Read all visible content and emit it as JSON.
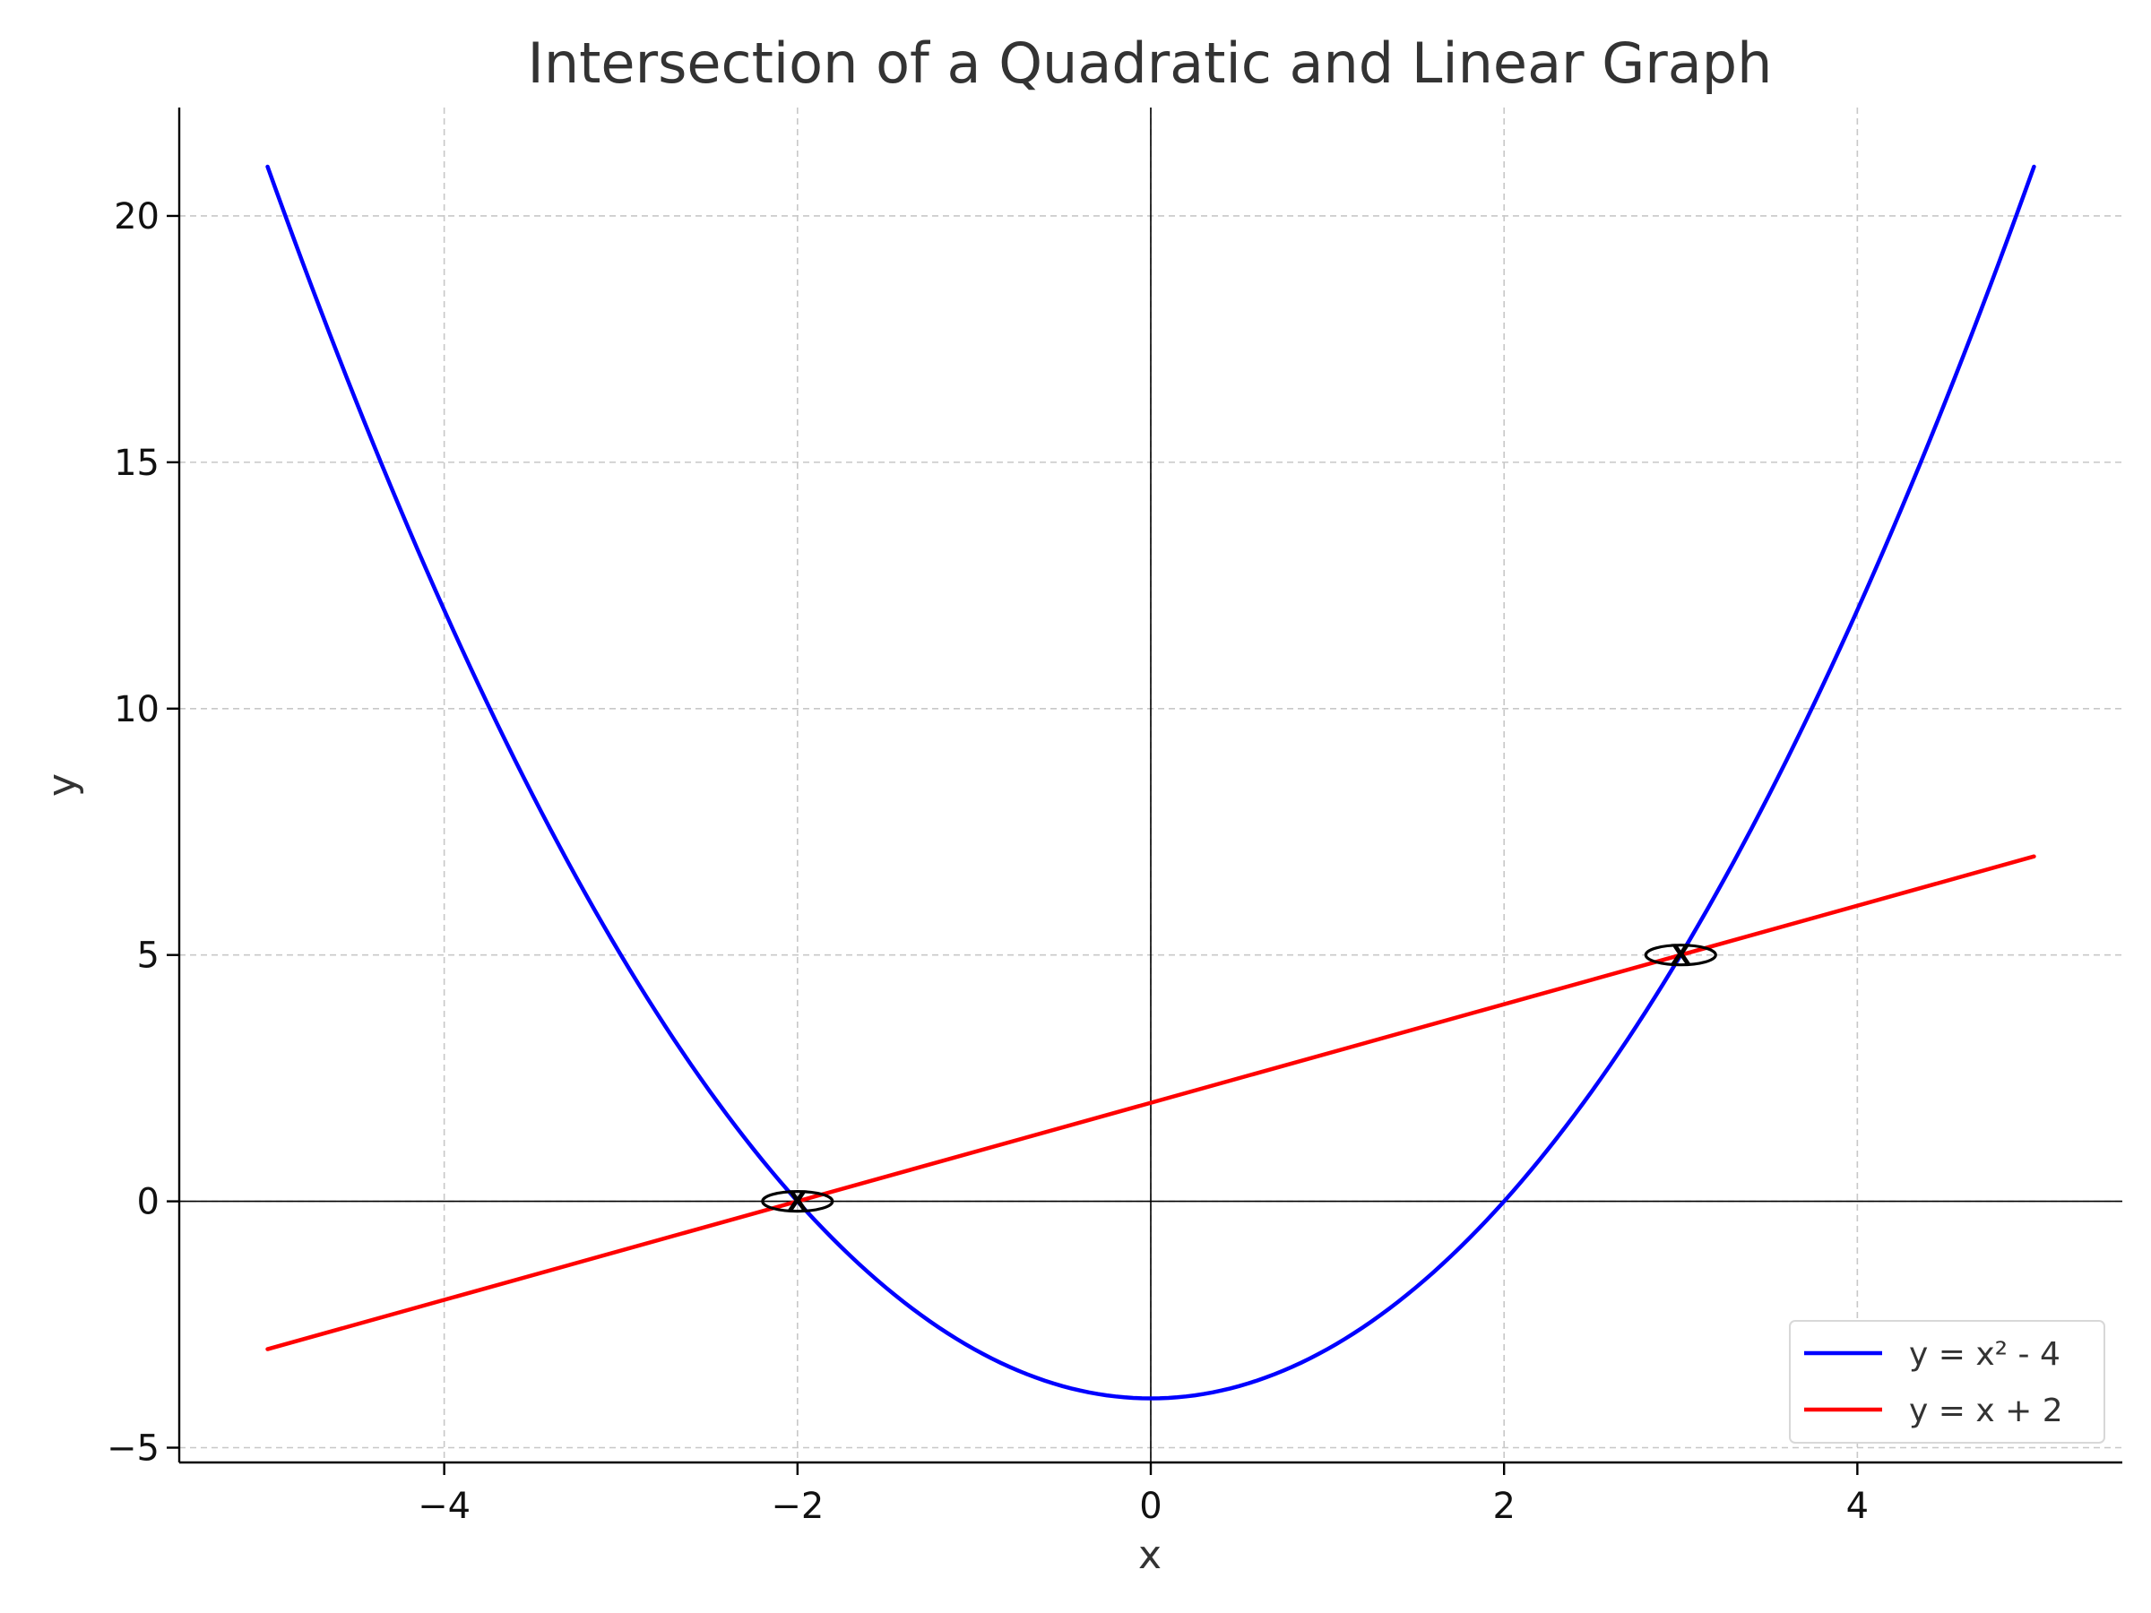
{
  "chart_data": {
    "type": "line",
    "title": "Intersection of a Quadratic and Linear Graph",
    "xlabel": "x",
    "ylabel": "y",
    "xlim": [
      -5.5,
      5.5
    ],
    "ylim": [
      -5.3,
      22.2
    ],
    "xticks": [
      -4,
      -2,
      0,
      2,
      4
    ],
    "xtick_labels": [
      "−4",
      "−2",
      "0",
      "2",
      "4"
    ],
    "yticks": [
      -5,
      0,
      5,
      10,
      15,
      20
    ],
    "ytick_labels": [
      "−5",
      "0",
      "5",
      "10",
      "15",
      "20"
    ],
    "grid": true,
    "legend_position": "lower-right",
    "series": [
      {
        "name": "y = x² - 4",
        "color": "#0000ff",
        "x": [
          -5,
          -4.5,
          -4,
          -3.5,
          -3,
          -2.5,
          -2,
          -1.5,
          -1,
          -0.5,
          0,
          0.5,
          1,
          1.5,
          2,
          2.5,
          3,
          3.5,
          4,
          4.5,
          5
        ],
        "y": [
          21,
          16.25,
          12,
          8.25,
          5,
          2.25,
          0,
          -1.75,
          -3,
          -3.75,
          -4,
          -3.75,
          -3,
          -1.75,
          0,
          2.25,
          5,
          8.25,
          12,
          16.25,
          21
        ]
      },
      {
        "name": "y = x + 2",
        "color": "#ff0000",
        "x": [
          -5,
          5
        ],
        "y": [
          -3,
          7
        ]
      }
    ],
    "intersection_points": [
      {
        "x": -2,
        "y": 0,
        "label": "X"
      },
      {
        "x": 3,
        "y": 5,
        "label": "X"
      }
    ]
  }
}
